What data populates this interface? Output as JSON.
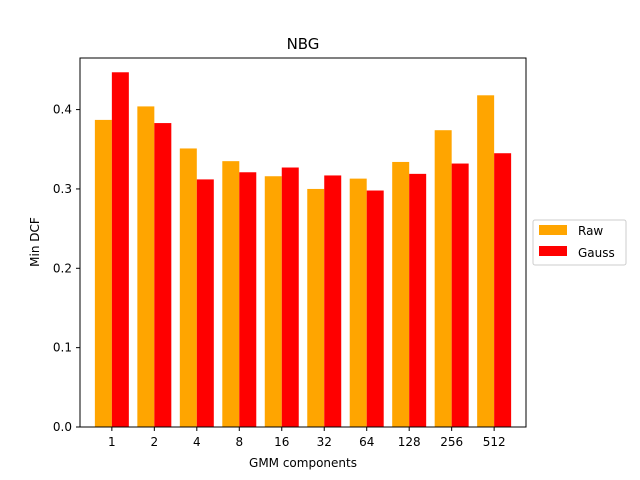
{
  "chart_data": {
    "type": "bar",
    "title": "NBG",
    "xlabel": "GMM components",
    "ylabel": "Min DCF",
    "categories": [
      "1",
      "2",
      "4",
      "8",
      "16",
      "32",
      "64",
      "128",
      "256",
      "512"
    ],
    "series": [
      {
        "name": "Raw",
        "color": "#FFA500",
        "values": [
          0.387,
          0.404,
          0.351,
          0.335,
          0.316,
          0.3,
          0.313,
          0.334,
          0.374,
          0.418
        ]
      },
      {
        "name": "Gauss",
        "color": "#FF0000",
        "values": [
          0.447,
          0.383,
          0.312,
          0.321,
          0.327,
          0.317,
          0.298,
          0.319,
          0.332,
          0.345
        ]
      }
    ],
    "ylim": [
      0,
      0.465
    ],
    "yticks": [
      "0.0",
      "0.1",
      "0.2",
      "0.3",
      "0.4"
    ],
    "grid": false,
    "legend_position": "center-right outside"
  }
}
